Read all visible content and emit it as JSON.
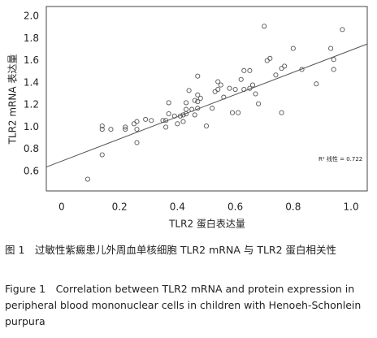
{
  "chart_data": {
    "type": "scatter",
    "x_label": "TLR2 蛋白表达量",
    "y_label": "TLR2 mRNA 表达量",
    "annotation": "R² 线性 = 0.722",
    "x": [
      0.09,
      0.14,
      0.14,
      0.14,
      0.17,
      0.22,
      0.22,
      0.25,
      0.26,
      0.26,
      0.26,
      0.29,
      0.31,
      0.35,
      0.36,
      0.36,
      0.37,
      0.37,
      0.39,
      0.4,
      0.41,
      0.42,
      0.42,
      0.43,
      0.43,
      0.43,
      0.44,
      0.45,
      0.46,
      0.46,
      0.47,
      0.47,
      0.47,
      0.47,
      0.48,
      0.5,
      0.52,
      0.53,
      0.54,
      0.54,
      0.55,
      0.56,
      0.58,
      0.59,
      0.6,
      0.61,
      0.62,
      0.63,
      0.63,
      0.65,
      0.65,
      0.66,
      0.67,
      0.68,
      0.7,
      0.71,
      0.72,
      0.74,
      0.76,
      0.76,
      0.77,
      0.8,
      0.83,
      0.88,
      0.93,
      0.94,
      0.94,
      0.97
    ],
    "y": [
      0.53,
      0.75,
      1.01,
      0.98,
      0.98,
      0.98,
      1.0,
      1.03,
      0.98,
      0.86,
      1.05,
      1.07,
      1.06,
      1.06,
      1.0,
      1.06,
      1.12,
      1.22,
      1.1,
      1.03,
      1.1,
      1.11,
      1.05,
      1.16,
      1.12,
      1.22,
      1.33,
      1.16,
      1.11,
      1.24,
      1.29,
      1.46,
      1.17,
      1.23,
      1.26,
      1.01,
      1.17,
      1.32,
      1.41,
      1.34,
      1.38,
      1.27,
      1.35,
      1.13,
      1.34,
      1.13,
      1.43,
      1.34,
      1.51,
      1.51,
      1.35,
      1.38,
      1.3,
      1.21,
      1.91,
      1.6,
      1.62,
      1.47,
      1.13,
      1.53,
      1.55,
      1.71,
      1.52,
      1.39,
      1.71,
      1.61,
      1.52,
      1.88
    ],
    "color": "#555555",
    "trendline": {
      "x": [
        -0.053,
        1.056
      ],
      "y": [
        0.64,
        1.75
      ],
      "color": "#555555"
    },
    "xlim": [
      -0.053,
      1.056
    ],
    "ylim": [
      0.424,
      2.088
    ],
    "xticks": [
      0,
      0.2,
      0.4,
      0.6,
      0.8,
      {
        "value": 1,
        "label": "1.0"
      }
    ],
    "yticks": [
      0.6,
      0.8,
      {
        "value": 1,
        "label": "1.0"
      },
      1.2,
      1.4,
      1.6,
      1.8,
      {
        "value": 2,
        "label": "2.0"
      }
    ],
    "grid": false
  },
  "caption": {
    "zh": "图 1　过敏性紫癜患儿外周血单核细胞 TLR2 mRNA 与 TLR2 蛋白相关性",
    "en": "Figure 1　Correlation between TLR2 mRNA and protein expression in peripheral blood mononuclear cells in children with Henoeh-Schonlein purpura"
  }
}
